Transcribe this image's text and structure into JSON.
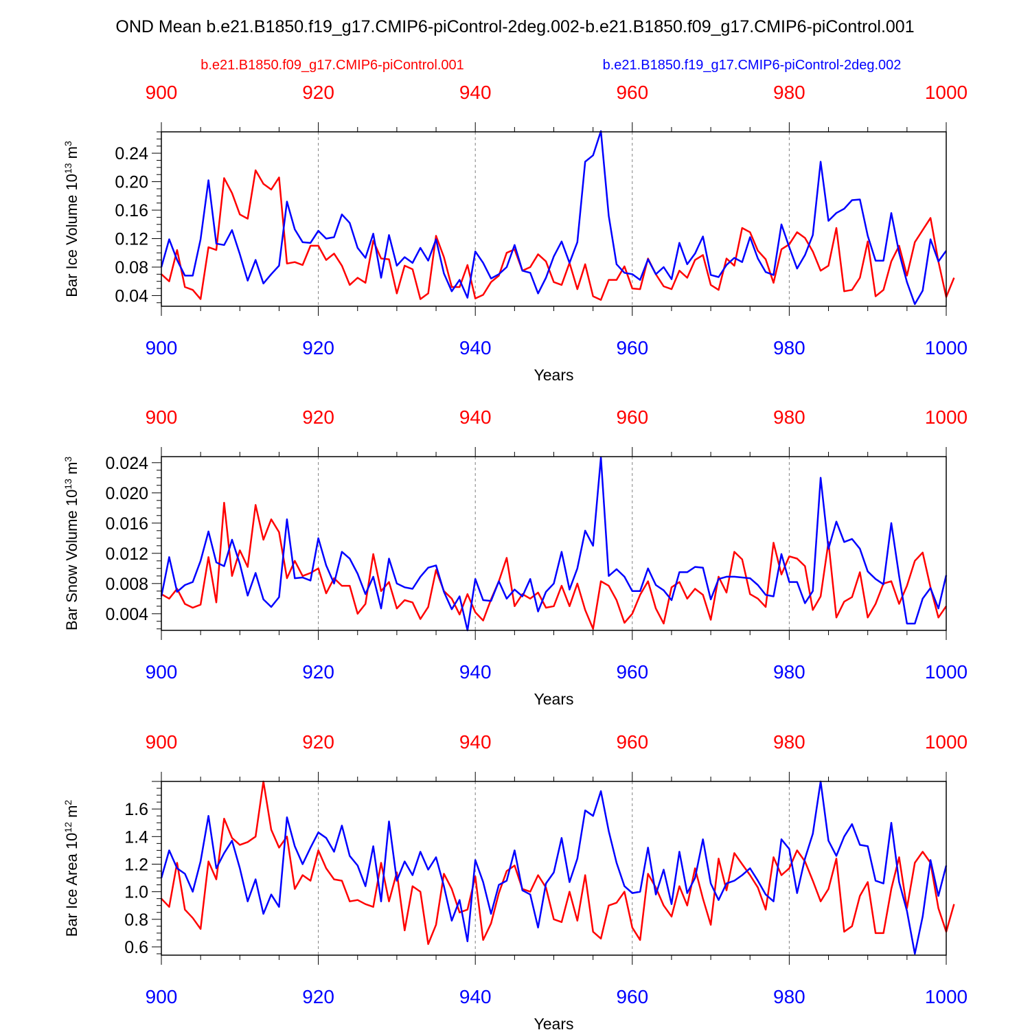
{
  "title": "OND Mean b.e21.B1850.f19_g17.CMIP6-piControl-2deg.002-b.e21.B1850.f09_g17.CMIP6-piControl.001",
  "legend": {
    "red_label": "b.e21.B1850.f09_g17.CMIP6-piControl.001",
    "blue_label": "b.e21.B1850.f19_g17.CMIP6-piControl-2deg.002"
  },
  "colors": {
    "red": "#ff0000",
    "blue": "#0000ff",
    "axis": "#000000",
    "grid": "#808080"
  },
  "chart_data": [
    {
      "type": "line",
      "ylabel_main": "Bar Ice Volume 10",
      "ylabel_sup": "13",
      "ylabel_unit": " m",
      "ylabel_unit_sup": "3",
      "xlabel": "Years",
      "xlim": [
        900,
        1000
      ],
      "ylim": [
        0.025,
        0.27
      ],
      "x_ticks": [
        900,
        920,
        940,
        960,
        980,
        1000
      ],
      "x_tick_labels": [
        "900",
        "920",
        "940",
        "960",
        "980",
        "1000"
      ],
      "y_ticks": [
        0.04,
        0.08,
        0.12,
        0.16,
        0.2,
        0.24
      ],
      "y_tick_labels": [
        "0.04",
        "0.08",
        "0.12",
        "0.16",
        "0.20",
        "0.24"
      ],
      "x_start": 900,
      "series": [
        {
          "name": "b.e21.B1850.f09_g17.CMIP6-piControl.001",
          "color": "red",
          "values": [
            0.07,
            0.06,
            0.104,
            0.052,
            0.048,
            0.035,
            0.108,
            0.104,
            0.205,
            0.184,
            0.154,
            0.148,
            0.216,
            0.197,
            0.189,
            0.206,
            0.085,
            0.087,
            0.083,
            0.11,
            0.11,
            0.09,
            0.099,
            0.082,
            0.055,
            0.065,
            0.058,
            0.117,
            0.092,
            0.091,
            0.043,
            0.082,
            0.077,
            0.035,
            0.043,
            0.124,
            0.094,
            0.052,
            0.052,
            0.083,
            0.036,
            0.041,
            0.059,
            0.068,
            0.1,
            0.105,
            0.075,
            0.08,
            0.098,
            0.088,
            0.059,
            0.055,
            0.086,
            0.049,
            0.084,
            0.039,
            0.034,
            0.062,
            0.062,
            0.081,
            0.05,
            0.049,
            0.092,
            0.07,
            0.053,
            0.049,
            0.075,
            0.065,
            0.09,
            0.097,
            0.055,
            0.048,
            0.092,
            0.082,
            0.135,
            0.129,
            0.103,
            0.091,
            0.058,
            0.105,
            0.112,
            0.129,
            0.121,
            0.102,
            0.075,
            0.082,
            0.135,
            0.046,
            0.048,
            0.065,
            0.116,
            0.039,
            0.048,
            0.088,
            0.11,
            0.068,
            0.115,
            0.132,
            0.149,
            0.088,
            0.038,
            0.065
          ]
        },
        {
          "name": "b.e21.B1850.f19_g17.CMIP6-piControl-2deg.002",
          "color": "blue",
          "values": [
            0.08,
            0.119,
            0.09,
            0.068,
            0.068,
            0.119,
            0.202,
            0.113,
            0.111,
            0.132,
            0.098,
            0.061,
            0.09,
            0.057,
            0.07,
            0.082,
            0.172,
            0.133,
            0.115,
            0.114,
            0.131,
            0.12,
            0.122,
            0.154,
            0.142,
            0.107,
            0.093,
            0.127,
            0.065,
            0.125,
            0.082,
            0.094,
            0.086,
            0.107,
            0.089,
            0.119,
            0.071,
            0.046,
            0.062,
            0.037,
            0.102,
            0.086,
            0.064,
            0.07,
            0.08,
            0.111,
            0.075,
            0.072,
            0.043,
            0.065,
            0.095,
            0.116,
            0.086,
            0.115,
            0.228,
            0.237,
            0.271,
            0.152,
            0.084,
            0.072,
            0.07,
            0.062,
            0.091,
            0.07,
            0.08,
            0.063,
            0.114,
            0.084,
            0.099,
            0.123,
            0.069,
            0.066,
            0.083,
            0.093,
            0.087,
            0.122,
            0.092,
            0.073,
            0.069,
            0.14,
            0.108,
            0.078,
            0.097,
            0.125,
            0.228,
            0.145,
            0.156,
            0.162,
            0.174,
            0.175,
            0.124,
            0.089,
            0.089,
            0.156,
            0.1,
            0.059,
            0.028,
            0.047,
            0.119,
            0.088,
            0.103
          ]
        }
      ]
    },
    {
      "type": "line",
      "ylabel_main": "Bar Snow Volume 10",
      "ylabel_sup": "13",
      "ylabel_unit": " m",
      "ylabel_unit_sup": "3",
      "xlabel": "Years",
      "xlim": [
        900,
        1000
      ],
      "ylim": [
        0.0018,
        0.0248
      ],
      "x_ticks": [
        900,
        920,
        940,
        960,
        980,
        1000
      ],
      "x_tick_labels": [
        "900",
        "920",
        "940",
        "960",
        "980",
        "1000"
      ],
      "y_ticks": [
        0.004,
        0.008,
        0.012,
        0.016,
        0.02,
        0.024
      ],
      "y_tick_labels": [
        "0.004",
        "0.008",
        "0.012",
        "0.016",
        "0.020",
        "0.024"
      ],
      "x_start": 900,
      "series": [
        {
          "name": "b.e21.B1850.f09_g17.CMIP6-piControl.001",
          "color": "red",
          "values": [
            0.0066,
            0.006,
            0.0073,
            0.0053,
            0.0048,
            0.0052,
            0.0115,
            0.0055,
            0.0187,
            0.009,
            0.0124,
            0.0102,
            0.0184,
            0.0138,
            0.0165,
            0.0148,
            0.0087,
            0.011,
            0.009,
            0.0094,
            0.01,
            0.0067,
            0.0087,
            0.0077,
            0.0077,
            0.004,
            0.0053,
            0.0119,
            0.007,
            0.0082,
            0.0047,
            0.0058,
            0.0055,
            0.0033,
            0.0049,
            0.0098,
            0.007,
            0.006,
            0.0039,
            0.0066,
            0.0042,
            0.0031,
            0.0059,
            0.0083,
            0.0114,
            0.005,
            0.0066,
            0.006,
            0.0068,
            0.0048,
            0.005,
            0.0077,
            0.005,
            0.008,
            0.0045,
            0.002,
            0.0083,
            0.0077,
            0.0058,
            0.0028,
            0.004,
            0.0065,
            0.0083,
            0.0047,
            0.0027,
            0.0075,
            0.0082,
            0.006,
            0.0073,
            0.0065,
            0.0032,
            0.0089,
            0.0068,
            0.0122,
            0.0112,
            0.0066,
            0.006,
            0.0049,
            0.0134,
            0.0092,
            0.0116,
            0.0113,
            0.0103,
            0.0045,
            0.0063,
            0.0135,
            0.0035,
            0.0056,
            0.0062,
            0.0095,
            0.0035,
            0.0053,
            0.008,
            0.0083,
            0.0053,
            0.0077,
            0.011,
            0.0121,
            0.0075,
            0.0035,
            0.005
          ]
        },
        {
          "name": "b.e21.B1850.f19_g17.CMIP6-piControl-2deg.002",
          "color": "blue",
          "values": [
            0.0063,
            0.0115,
            0.0069,
            0.0078,
            0.0082,
            0.011,
            0.0149,
            0.0108,
            0.0103,
            0.0138,
            0.0106,
            0.0064,
            0.0094,
            0.0059,
            0.0049,
            0.0062,
            0.0165,
            0.0087,
            0.0088,
            0.0084,
            0.014,
            0.0104,
            0.008,
            0.0122,
            0.0113,
            0.0093,
            0.0066,
            0.0089,
            0.0047,
            0.0113,
            0.008,
            0.0075,
            0.0073,
            0.0089,
            0.0101,
            0.0104,
            0.0069,
            0.0046,
            0.0063,
            0.0018,
            0.0086,
            0.0058,
            0.0057,
            0.0083,
            0.006,
            0.0072,
            0.0063,
            0.0086,
            0.0043,
            0.0069,
            0.008,
            0.0122,
            0.0072,
            0.01,
            0.015,
            0.013,
            0.0247,
            0.009,
            0.0099,
            0.0089,
            0.007,
            0.007,
            0.01,
            0.0078,
            0.0071,
            0.0058,
            0.0095,
            0.0095,
            0.0102,
            0.0101,
            0.0059,
            0.0086,
            0.0089,
            0.0089,
            0.0088,
            0.0087,
            0.0078,
            0.0065,
            0.0063,
            0.0119,
            0.0082,
            0.0082,
            0.0054,
            0.007,
            0.022,
            0.0126,
            0.0162,
            0.0135,
            0.0139,
            0.0126,
            0.0096,
            0.0086,
            0.0079,
            0.016,
            0.009,
            0.0027,
            0.0027,
            0.006,
            0.0074,
            0.0047,
            0.0091
          ]
        }
      ]
    },
    {
      "type": "line",
      "ylabel_main": "Bar Ice Area 10",
      "ylabel_sup": "12",
      "ylabel_unit": " m",
      "ylabel_unit_sup": "2",
      "xlabel": "Years",
      "xlim": [
        900,
        1000
      ],
      "ylim": [
        0.54,
        1.8
      ],
      "x_ticks": [
        900,
        920,
        940,
        960,
        980,
        1000
      ],
      "x_tick_labels": [
        "900",
        "920",
        "940",
        "960",
        "980",
        "1000"
      ],
      "y_ticks": [
        0.6,
        0.8,
        1.0,
        1.2,
        1.4,
        1.6
      ],
      "y_tick_labels": [
        "0.6",
        "0.8",
        "1.0",
        "1.2",
        "1.4",
        "1.6"
      ],
      "x_start": 900,
      "series": [
        {
          "name": "b.e21.B1850.f09_g17.CMIP6-piControl.001",
          "color": "red",
          "values": [
            0.95,
            0.89,
            1.21,
            0.87,
            0.81,
            0.73,
            1.22,
            1.09,
            1.53,
            1.39,
            1.34,
            1.36,
            1.4,
            1.8,
            1.45,
            1.32,
            1.4,
            1.02,
            1.12,
            1.08,
            1.3,
            1.17,
            1.09,
            1.08,
            0.93,
            0.94,
            0.91,
            0.89,
            1.21,
            0.93,
            1.14,
            0.72,
            1.04,
            1.0,
            0.62,
            0.76,
            1.13,
            1.02,
            0.85,
            0.87,
            1.11,
            0.65,
            0.77,
            0.99,
            1.15,
            1.19,
            1.02,
            1.0,
            1.12,
            1.03,
            0.8,
            0.78,
            1.0,
            0.79,
            1.12,
            0.71,
            0.66,
            0.9,
            0.92,
            1.0,
            0.74,
            0.65,
            1.13,
            1.03,
            0.9,
            0.82,
            1.04,
            0.9,
            1.17,
            0.95,
            0.76,
            1.24,
            1.01,
            1.28,
            1.2,
            1.12,
            1.03,
            0.87,
            1.25,
            1.12,
            1.17,
            1.3,
            1.22,
            1.08,
            0.93,
            1.02,
            1.24,
            0.71,
            0.75,
            0.97,
            1.07,
            0.7,
            0.7,
            1.02,
            1.25,
            0.88,
            1.21,
            1.29,
            1.21,
            0.88,
            0.71,
            0.91
          ]
        },
        {
          "name": "b.e21.B1850.f19_g17.CMIP6-piControl-2deg.002",
          "color": "blue",
          "values": [
            1.1,
            1.3,
            1.17,
            1.13,
            1.0,
            1.22,
            1.55,
            1.17,
            1.28,
            1.37,
            1.17,
            0.93,
            1.09,
            0.84,
            0.98,
            0.89,
            1.54,
            1.33,
            1.2,
            1.32,
            1.43,
            1.39,
            1.29,
            1.48,
            1.26,
            1.19,
            1.04,
            1.33,
            0.93,
            1.51,
            1.08,
            1.22,
            1.12,
            1.29,
            1.16,
            1.25,
            1.04,
            0.79,
            0.94,
            0.64,
            1.23,
            1.07,
            0.84,
            1.05,
            1.08,
            1.3,
            1.01,
            0.98,
            0.74,
            1.06,
            1.14,
            1.39,
            1.07,
            1.24,
            1.59,
            1.55,
            1.73,
            1.44,
            1.21,
            1.04,
            0.99,
            1.0,
            1.32,
            0.98,
            1.16,
            0.91,
            1.29,
            0.99,
            1.1,
            1.38,
            1.06,
            0.94,
            1.06,
            1.08,
            1.12,
            1.17,
            1.08,
            0.98,
            0.93,
            1.38,
            1.31,
            0.99,
            1.24,
            1.42,
            1.8,
            1.37,
            1.26,
            1.4,
            1.49,
            1.34,
            1.33,
            1.08,
            1.06,
            1.5,
            1.07,
            0.86,
            0.55,
            0.82,
            1.23,
            0.97,
            1.19
          ]
        }
      ]
    }
  ]
}
